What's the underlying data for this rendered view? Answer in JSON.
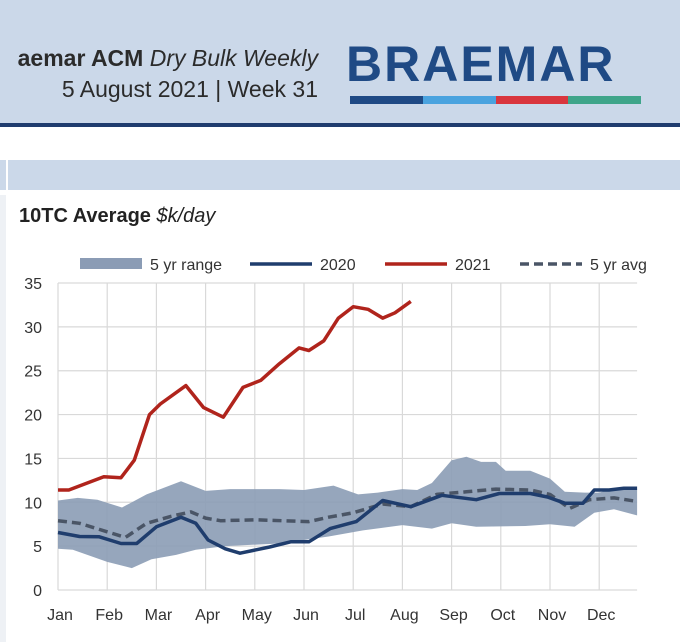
{
  "header": {
    "title_brand": "aemar ACM",
    "title_product": "Dry Bulk Weekly",
    "date_line": "5 August 2021 | Week 31",
    "logo": "BRAEMAR",
    "logo_bar_colors": [
      "#1f4a85",
      "#4aa3df",
      "#d9363e",
      "#3fa58a"
    ]
  },
  "chart_data": {
    "type": "line",
    "title": "10TC Average",
    "title_unit": "$k/day",
    "xlabel": "",
    "ylabel": "",
    "ylim": [
      0,
      35
    ],
    "yticks": [
      0,
      5,
      10,
      15,
      20,
      25,
      30,
      35
    ],
    "categories": [
      "Jan",
      "Feb",
      "Mar",
      "Apr",
      "May",
      "Jun",
      "Jul",
      "Aug",
      "Sep",
      "Oct",
      "Nov",
      "Dec"
    ],
    "x_units": "months since Jan (0=Jan)",
    "grid": true,
    "legend": "top",
    "legend_items": [
      "5 yr range",
      "2020",
      "2021",
      "5 yr avg"
    ],
    "colors": {
      "range": "#8b9cb5",
      "2020": "#1f3d6d",
      "2021": "#b0241c",
      "avg": "#4a5566"
    },
    "range_upper": [
      [
        0,
        10.2
      ],
      [
        0.4,
        10.5
      ],
      [
        0.8,
        10.3
      ],
      [
        1.3,
        9.4
      ],
      [
        1.8,
        10.9
      ],
      [
        2.5,
        12.4
      ],
      [
        3,
        11.3
      ],
      [
        3.5,
        11.5
      ],
      [
        4.5,
        11.5
      ],
      [
        5,
        11.4
      ],
      [
        5.6,
        11.9
      ],
      [
        6.1,
        10.9
      ],
      [
        6.5,
        11.1
      ],
      [
        7,
        11.5
      ],
      [
        7.3,
        11.4
      ],
      [
        7.6,
        12.2
      ],
      [
        8,
        14.8
      ],
      [
        8.3,
        15.2
      ],
      [
        8.6,
        14.6
      ],
      [
        8.9,
        14.6
      ],
      [
        9.1,
        13.6
      ],
      [
        9.6,
        13.6
      ],
      [
        10,
        12.7
      ],
      [
        10.3,
        11.2
      ],
      [
        10.7,
        11.1
      ],
      [
        11,
        11.1
      ],
      [
        11.3,
        11.6
      ],
      [
        11.77,
        11.5
      ]
    ],
    "range_lower": [
      [
        0,
        4.7
      ],
      [
        0.3,
        4.6
      ],
      [
        1,
        3.2
      ],
      [
        1.5,
        2.5
      ],
      [
        1.9,
        3.5
      ],
      [
        2.4,
        4
      ],
      [
        2.8,
        4.6
      ],
      [
        3.4,
        5
      ],
      [
        4.5,
        5.3
      ],
      [
        5.5,
        6.1
      ],
      [
        6.2,
        6.8
      ],
      [
        7,
        7.4
      ],
      [
        7.6,
        7
      ],
      [
        8,
        7.6
      ],
      [
        8.5,
        7.2
      ],
      [
        9.5,
        7.3
      ],
      [
        10,
        7.5
      ],
      [
        10.5,
        7.2
      ],
      [
        10.9,
        8.8
      ],
      [
        11.3,
        9.2
      ],
      [
        11.77,
        8.5
      ]
    ],
    "series": [
      {
        "name": "2020",
        "points": [
          [
            0,
            6.55
          ],
          [
            0.44,
            6.1
          ],
          [
            0.84,
            6.06
          ],
          [
            1.28,
            5.3
          ],
          [
            1.6,
            5.3
          ],
          [
            2,
            7.2
          ],
          [
            2.5,
            8.3
          ],
          [
            2.8,
            7.6
          ],
          [
            3.05,
            5.7
          ],
          [
            3.4,
            4.7
          ],
          [
            3.7,
            4.2
          ],
          [
            4.3,
            4.9
          ],
          [
            4.73,
            5.5
          ],
          [
            5.1,
            5.5
          ],
          [
            5.53,
            7
          ],
          [
            6.06,
            7.8
          ],
          [
            6.6,
            10.2
          ],
          [
            7.17,
            9.5
          ],
          [
            7.8,
            10.8
          ],
          [
            8.5,
            10.3
          ],
          [
            8.97,
            11
          ],
          [
            9.6,
            11
          ],
          [
            9.95,
            10.6
          ],
          [
            10.3,
            9.9
          ],
          [
            10.67,
            9.9
          ],
          [
            10.9,
            11.4
          ],
          [
            11.2,
            11.4
          ],
          [
            11.5,
            11.6
          ],
          [
            11.77,
            11.6
          ]
        ]
      },
      {
        "name": "2021",
        "points": [
          [
            0,
            11.4
          ],
          [
            0.22,
            11.4
          ],
          [
            0.93,
            12.9
          ],
          [
            1.28,
            12.8
          ],
          [
            1.55,
            14.8
          ],
          [
            1.86,
            20
          ],
          [
            2.08,
            21.2
          ],
          [
            2.6,
            23.3
          ],
          [
            2.96,
            20.8
          ],
          [
            3.36,
            19.7
          ],
          [
            3.76,
            23.1
          ],
          [
            4.12,
            23.9
          ],
          [
            4.5,
            25.8
          ],
          [
            4.9,
            27.6
          ],
          [
            5.1,
            27.3
          ],
          [
            5.4,
            28.4
          ],
          [
            5.7,
            31
          ],
          [
            6,
            32.3
          ],
          [
            6.3,
            32
          ],
          [
            6.6,
            31
          ],
          [
            6.85,
            31.6
          ],
          [
            7.17,
            32.9
          ]
        ]
      },
      {
        "name": "5 yr avg",
        "points": [
          [
            0,
            7.9
          ],
          [
            0.44,
            7.6
          ],
          [
            1.37,
            6
          ],
          [
            1.8,
            7.6
          ],
          [
            2.3,
            8.4
          ],
          [
            2.7,
            8.9
          ],
          [
            3,
            8.2
          ],
          [
            3.3,
            7.9
          ],
          [
            4,
            8
          ],
          [
            5.1,
            7.8
          ],
          [
            5.5,
            8.3
          ],
          [
            6,
            8.8
          ],
          [
            6.6,
            9.8
          ],
          [
            7.17,
            9.5
          ],
          [
            7.7,
            10.9
          ],
          [
            8.3,
            11.2
          ],
          [
            8.9,
            11.5
          ],
          [
            9.6,
            11.4
          ],
          [
            10,
            10.9
          ],
          [
            10.4,
            9.3
          ],
          [
            10.8,
            10.3
          ],
          [
            11.3,
            10.5
          ],
          [
            11.77,
            10.1
          ]
        ]
      }
    ]
  }
}
